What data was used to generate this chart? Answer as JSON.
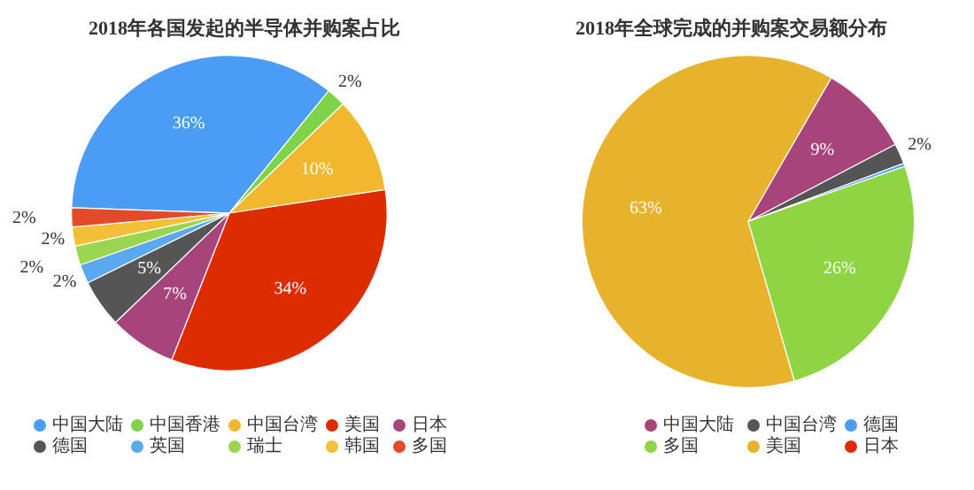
{
  "chart_data": [
    {
      "type": "pie",
      "title": "2018年各国发起的半导体并购案占比",
      "legend": "bottom",
      "categories": [
        "中国大陆",
        "中国香港",
        "中国台湾",
        "美国",
        "日本",
        "德国",
        "英国",
        "瑞士",
        "韩国",
        "多国"
      ],
      "values": [
        36,
        2,
        10,
        34,
        7,
        5,
        2,
        2,
        2,
        2
      ],
      "value_labels": [
        "36%",
        "2%",
        "10%",
        "34%",
        "7%",
        "5%",
        "2%",
        "2%",
        "2%",
        "2%"
      ],
      "colors": [
        "#4a9cf5",
        "#7ed348",
        "#f0b72f",
        "#dd2c00",
        "#a8447c",
        "#555555",
        "#5aa8f0",
        "#9ad550",
        "#f2c037",
        "#e24a2a"
      ]
    },
    {
      "type": "pie",
      "title": "2018年全球完成的并购案交易额分布",
      "legend": "bottom",
      "categories": [
        "中国大陆",
        "中国台湾",
        "德国",
        "多国",
        "美国",
        "日本"
      ],
      "values": [
        9,
        2,
        0.3,
        26,
        63,
        0
      ],
      "value_labels": [
        "9%",
        "2%",
        null,
        "26%",
        "63%",
        null
      ],
      "colors": [
        "#a8447c",
        "#555555",
        "#4a9cf5",
        "#8ed443",
        "#e8b32c",
        "#dd2c00"
      ]
    }
  ]
}
